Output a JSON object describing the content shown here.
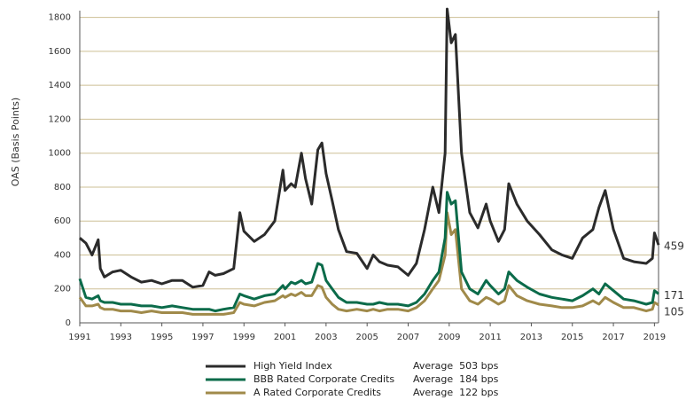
{
  "chart_data": {
    "type": "line",
    "y_label": "OAS (Basis Points)",
    "x": [
      1991.0,
      1991.3,
      1991.6,
      1991.9,
      1992.0,
      1992.2,
      1992.6,
      1993.0,
      1993.5,
      1994.0,
      1994.5,
      1995.0,
      1995.5,
      1996.0,
      1996.5,
      1997.0,
      1997.3,
      1997.6,
      1998.0,
      1998.5,
      1998.8,
      1999.0,
      1999.5,
      2000.0,
      2000.5,
      2000.9,
      2001.0,
      2001.3,
      2001.5,
      2001.8,
      2002.0,
      2002.3,
      2002.6,
      2002.8,
      2003.0,
      2003.3,
      2003.6,
      2004.0,
      2004.5,
      2005.0,
      2005.3,
      2005.6,
      2006.0,
      2006.5,
      2007.0,
      2007.4,
      2007.8,
      2008.2,
      2008.5,
      2008.8,
      2008.9,
      2009.1,
      2009.3,
      2009.6,
      2010.0,
      2010.4,
      2010.8,
      2011.0,
      2011.4,
      2011.7,
      2011.9,
      2012.3,
      2012.8,
      2013.4,
      2014.0,
      2014.5,
      2015.0,
      2015.5,
      2016.0,
      2016.3,
      2016.6,
      2017.0,
      2017.5,
      2018.0,
      2018.6,
      2018.9,
      2019.0,
      2019.2
    ],
    "series": [
      {
        "name": "High Yield Index",
        "average": "Average  503 bps",
        "end_label": "459",
        "color": "#2b2b2b",
        "values": [
          500,
          470,
          400,
          490,
          320,
          270,
          300,
          310,
          270,
          240,
          250,
          230,
          250,
          250,
          210,
          220,
          300,
          280,
          290,
          320,
          650,
          540,
          480,
          520,
          600,
          900,
          780,
          820,
          800,
          1000,
          850,
          700,
          1020,
          1060,
          880,
          720,
          550,
          420,
          410,
          320,
          400,
          360,
          340,
          330,
          280,
          350,
          550,
          800,
          650,
          1000,
          1850,
          1650,
          1700,
          1000,
          650,
          560,
          700,
          600,
          480,
          550,
          820,
          700,
          600,
          520,
          430,
          400,
          380,
          500,
          550,
          680,
          780,
          550,
          380,
          360,
          350,
          380,
          530,
          459
        ]
      },
      {
        "name": "BBB Rated Corporate Credits",
        "average": "Average  184 bps",
        "end_label": "171",
        "color": "#0b6b4a",
        "values": [
          260,
          150,
          140,
          160,
          130,
          120,
          120,
          110,
          110,
          100,
          100,
          90,
          100,
          90,
          80,
          80,
          80,
          70,
          80,
          90,
          170,
          160,
          140,
          160,
          170,
          220,
          200,
          240,
          230,
          250,
          230,
          240,
          350,
          340,
          250,
          200,
          150,
          120,
          120,
          110,
          110,
          120,
          110,
          110,
          100,
          120,
          170,
          250,
          300,
          500,
          770,
          700,
          720,
          300,
          200,
          170,
          250,
          220,
          170,
          200,
          300,
          250,
          210,
          170,
          150,
          140,
          130,
          160,
          200,
          170,
          230,
          190,
          140,
          130,
          110,
          120,
          190,
          171
        ]
      },
      {
        "name": "A Rated Corporate Credits",
        "average": "Average  122 bps",
        "end_label": "105",
        "color": "#a08a4a",
        "values": [
          150,
          100,
          100,
          110,
          90,
          80,
          80,
          70,
          70,
          60,
          70,
          60,
          60,
          60,
          50,
          50,
          50,
          50,
          50,
          60,
          120,
          110,
          100,
          120,
          130,
          160,
          150,
          170,
          160,
          180,
          160,
          160,
          220,
          210,
          150,
          110,
          80,
          70,
          80,
          70,
          80,
          70,
          80,
          80,
          70,
          90,
          130,
          200,
          250,
          400,
          650,
          520,
          550,
          200,
          130,
          110,
          150,
          140,
          110,
          130,
          220,
          160,
          130,
          110,
          100,
          90,
          90,
          100,
          130,
          110,
          150,
          120,
          90,
          90,
          70,
          80,
          120,
          105
        ]
      }
    ],
    "xlim": [
      1991,
      2019.2
    ],
    "xticks": [
      1991,
      1993,
      1995,
      1997,
      1999,
      2001,
      2003,
      2005,
      2007,
      2009,
      2011,
      2013,
      2015,
      2017,
      2019
    ],
    "ylim": [
      0,
      1840
    ],
    "yticks": [
      0,
      200,
      400,
      600,
      800,
      1000,
      1200,
      1400,
      1600,
      1800
    ],
    "grid": true
  }
}
